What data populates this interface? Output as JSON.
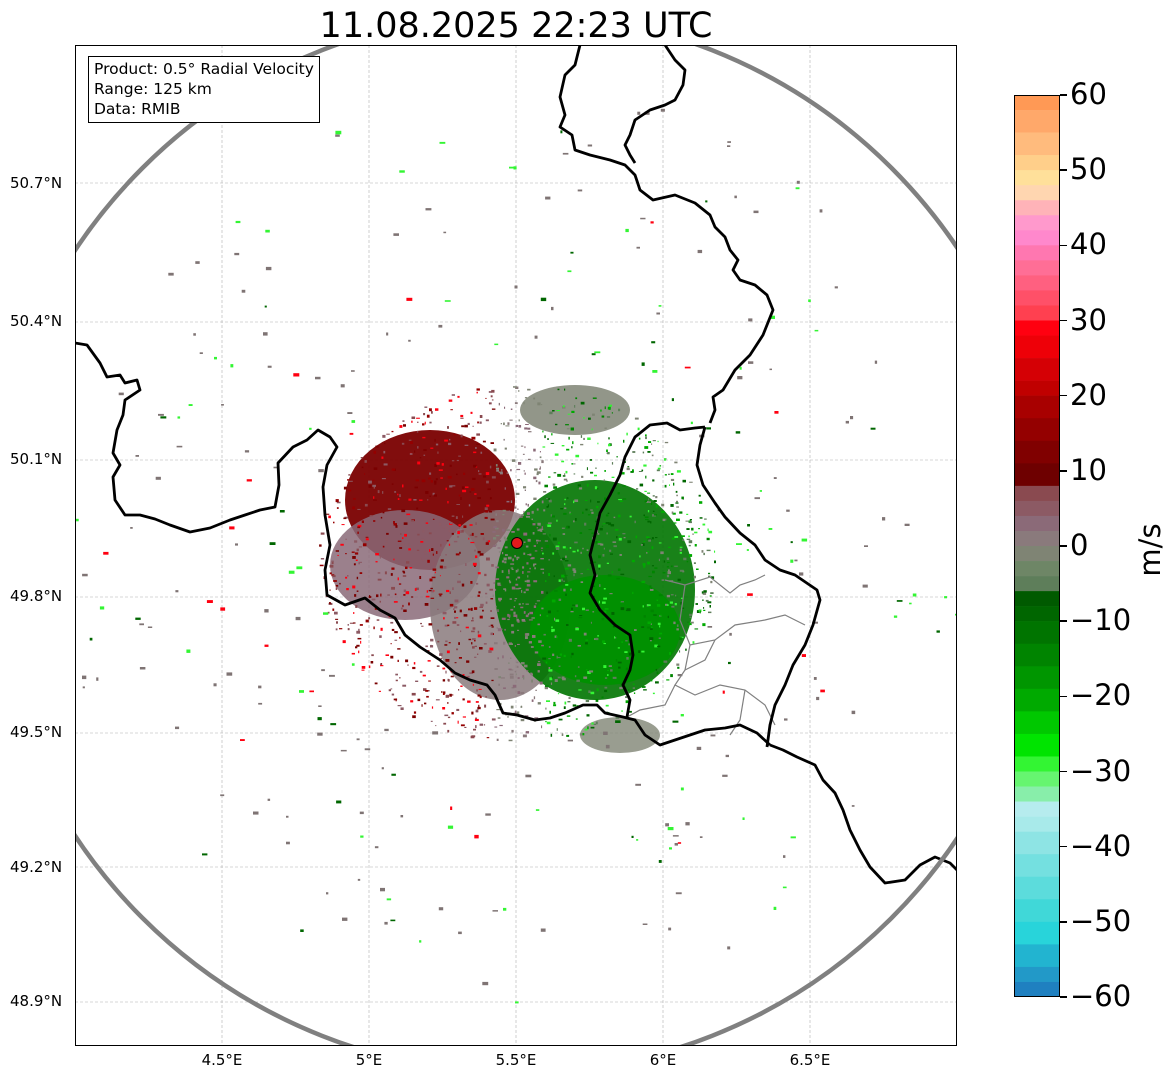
{
  "title": "11.08.2025 22:23 UTC",
  "info_box": {
    "product": "Product: 0.5° Radial Velocity",
    "range": "Range: 125 km",
    "data": "Data: RMIB"
  },
  "map": {
    "lon_range": [
      4.0,
      7.0
    ],
    "lat_range": [
      48.8,
      50.98
    ],
    "x_ticks": [
      "4.5°E",
      "5°E",
      "5.5°E",
      "6°E",
      "6.5°E"
    ],
    "y_ticks": [
      "50.7°N",
      "50.4°N",
      "50.1°N",
      "49.8°N",
      "49.5°N",
      "49.2°N",
      "48.9°N"
    ],
    "grid": true,
    "radar_site": {
      "lon": 5.505,
      "lat": 49.914,
      "label": ""
    },
    "range_ring_km": 125,
    "colors": {
      "country_border": "#000000",
      "admin_border": "#808080",
      "range_ring": "#808080",
      "radar_marker": "#e31a1c",
      "grid": "#b0b0b0"
    }
  },
  "colorbar": {
    "unit": "m/s",
    "min": -60,
    "max": 60,
    "tick_labels": [
      "60",
      "50",
      "40",
      "30",
      "20",
      "10",
      "0",
      "−10",
      "−20",
      "−30",
      "−40",
      "−50",
      "−60"
    ],
    "tick_values": [
      60,
      50,
      40,
      30,
      20,
      10,
      0,
      -10,
      -20,
      -30,
      -40,
      -50,
      -60
    ],
    "color_stops": [
      {
        "from": 58,
        "to": 60,
        "color": "#ff9955"
      },
      {
        "from": 55,
        "to": 58,
        "color": "#ffa86a"
      },
      {
        "from": 52,
        "to": 55,
        "color": "#ffbb7d"
      },
      {
        "from": 50,
        "to": 52,
        "color": "#ffcf8a"
      },
      {
        "from": 48,
        "to": 50,
        "color": "#ffe09a"
      },
      {
        "from": 46,
        "to": 48,
        "color": "#ffd6b0"
      },
      {
        "from": 44,
        "to": 46,
        "color": "#ffb3b8"
      },
      {
        "from": 42,
        "to": 44,
        "color": "#ff99cc"
      },
      {
        "from": 40,
        "to": 42,
        "color": "#ff88cc"
      },
      {
        "from": 38,
        "to": 40,
        "color": "#ff77b0"
      },
      {
        "from": 36,
        "to": 38,
        "color": "#ff6e96"
      },
      {
        "from": 34,
        "to": 36,
        "color": "#ff6080"
      },
      {
        "from": 32,
        "to": 34,
        "color": "#ff5068"
      },
      {
        "from": 30,
        "to": 32,
        "color": "#ff4050"
      },
      {
        "from": 28,
        "to": 30,
        "color": "#ff0010"
      },
      {
        "from": 25,
        "to": 28,
        "color": "#ee0008"
      },
      {
        "from": 22,
        "to": 25,
        "color": "#d50005"
      },
      {
        "from": 20,
        "to": 22,
        "color": "#c00000"
      },
      {
        "from": 17,
        "to": 20,
        "color": "#a80000"
      },
      {
        "from": 14,
        "to": 17,
        "color": "#940000"
      },
      {
        "from": 11,
        "to": 14,
        "color": "#800000"
      },
      {
        "from": 8,
        "to": 11,
        "color": "#6e0000"
      },
      {
        "from": 6,
        "to": 8,
        "color": "#8a4a50"
      },
      {
        "from": 4,
        "to": 6,
        "color": "#8c5a64"
      },
      {
        "from": 2,
        "to": 4,
        "color": "#8b6a78"
      },
      {
        "from": 0,
        "to": 2,
        "color": "#8a7a7c"
      },
      {
        "from": -2,
        "to": 0,
        "color": "#7f8474"
      },
      {
        "from": -4,
        "to": -2,
        "color": "#6e8666"
      },
      {
        "from": -6,
        "to": -4,
        "color": "#5e7e5a"
      },
      {
        "from": -8,
        "to": -6,
        "color": "#005a00"
      },
      {
        "from": -10,
        "to": -8,
        "color": "#006600"
      },
      {
        "from": -13,
        "to": -10,
        "color": "#007400"
      },
      {
        "from": -16,
        "to": -13,
        "color": "#008400"
      },
      {
        "from": -19,
        "to": -16,
        "color": "#009600"
      },
      {
        "from": -22,
        "to": -19,
        "color": "#00aa00"
      },
      {
        "from": -25,
        "to": -22,
        "color": "#00c800"
      },
      {
        "from": -28,
        "to": -25,
        "color": "#00e400"
      },
      {
        "from": -30,
        "to": -28,
        "color": "#33f533"
      },
      {
        "from": -32,
        "to": -30,
        "color": "#66f570"
      },
      {
        "from": -34,
        "to": -32,
        "color": "#88eeaa"
      },
      {
        "from": -36,
        "to": -34,
        "color": "#b6ecee"
      },
      {
        "from": -38,
        "to": -36,
        "color": "#a8eaea"
      },
      {
        "from": -41,
        "to": -38,
        "color": "#8ee4e4"
      },
      {
        "from": -44,
        "to": -41,
        "color": "#74e0e0"
      },
      {
        "from": -47,
        "to": -44,
        "color": "#5cdcdc"
      },
      {
        "from": -50,
        "to": -47,
        "color": "#40d8d8"
      },
      {
        "from": -53,
        "to": -50,
        "color": "#28d4da"
      },
      {
        "from": -56,
        "to": -53,
        "color": "#22b4d0"
      },
      {
        "from": -58,
        "to": -56,
        "color": "#2299c8"
      },
      {
        "from": -60,
        "to": -58,
        "color": "#1f80c0"
      }
    ]
  }
}
